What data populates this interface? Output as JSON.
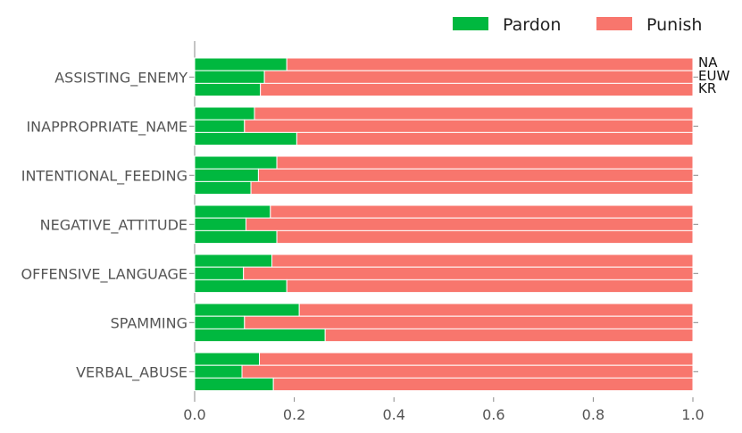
{
  "chart_data": {
    "type": "bar",
    "orientation": "horizontal",
    "stacked": true,
    "title": "",
    "xlabel": "",
    "ylabel": "",
    "xlim": [
      0,
      1.0
    ],
    "x_ticks": [
      "0.0",
      "0.2",
      "0.4",
      "0.6",
      "0.8",
      "1.0"
    ],
    "x_tick_values": [
      0.0,
      0.2,
      0.4,
      0.6,
      0.8,
      1.0
    ],
    "categories": [
      "ASSISTING_ENEMY",
      "INAPPROPRIATE_NAME",
      "INTENTIONAL_FEEDING",
      "NEGATIVE_ATTITUDE",
      "OFFENSIVE_LANGUAGE",
      "SPAMMING",
      "VERBAL_ABUSE"
    ],
    "regions": [
      "NA",
      "EUW",
      "KR"
    ],
    "legend": {
      "placement": "top-right",
      "entries": [
        "Pardon",
        "Punish"
      ]
    },
    "colors": {
      "Pardon": "#00b83f",
      "Punish": "#f8766d",
      "axis": "#888888",
      "text": "#555555"
    },
    "pardon": {
      "NA": [
        0.185,
        0.12,
        0.165,
        0.152,
        0.155,
        0.21,
        0.13
      ],
      "EUW": [
        0.14,
        0.1,
        0.128,
        0.103,
        0.098,
        0.1,
        0.095
      ],
      "KR": [
        0.132,
        0.205,
        0.113,
        0.165,
        0.185,
        0.262,
        0.158
      ]
    },
    "punish": {
      "NA": [
        0.815,
        0.88,
        0.835,
        0.848,
        0.845,
        0.79,
        0.87
      ],
      "EUW": [
        0.86,
        0.9,
        0.872,
        0.897,
        0.902,
        0.9,
        0.905
      ],
      "KR": [
        0.868,
        0.795,
        0.887,
        0.835,
        0.815,
        0.738,
        0.842
      ]
    }
  }
}
